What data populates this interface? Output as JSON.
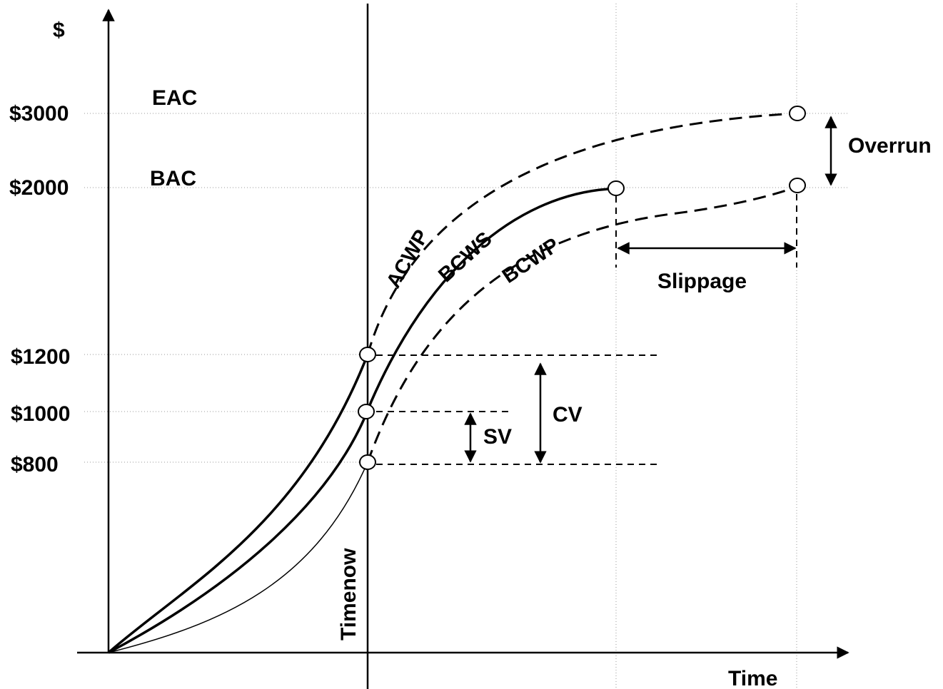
{
  "axes": {
    "y_label": "$",
    "x_label": "Time"
  },
  "ticks": {
    "t3000": "$3000",
    "t2000": "$2000",
    "t1200": "$1200",
    "t1000": "$1000",
    "t800": "$800"
  },
  "labels": {
    "eac": "EAC",
    "bac": "BAC",
    "acwp": "ACWP",
    "bcws": "BCWS",
    "bcwp": "BCWP",
    "overrun": "Overrun",
    "slippage": "Slippage",
    "cv": "CV",
    "sv": "SV",
    "timenow": "Timenow"
  }
}
